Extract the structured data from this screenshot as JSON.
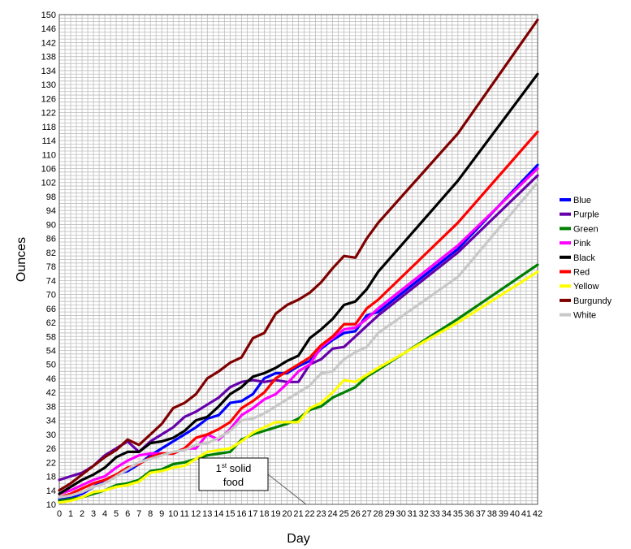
{
  "chart_data": {
    "type": "line",
    "xlabel": "Day",
    "ylabel": "Ounces",
    "xlim": [
      0,
      42
    ],
    "ylim": [
      10,
      150
    ],
    "x_ticks": [
      0,
      1,
      2,
      3,
      4,
      5,
      6,
      7,
      8,
      9,
      10,
      11,
      12,
      13,
      14,
      15,
      16,
      17,
      18,
      19,
      20,
      21,
      22,
      23,
      24,
      25,
      26,
      27,
      28,
      29,
      30,
      31,
      32,
      33,
      34,
      35,
      36,
      37,
      38,
      39,
      40,
      41,
      42
    ],
    "y_ticks": [
      10,
      14,
      18,
      22,
      26,
      30,
      34,
      38,
      42,
      46,
      50,
      54,
      58,
      62,
      66,
      70,
      74,
      78,
      82,
      86,
      90,
      94,
      98,
      102,
      106,
      110,
      114,
      118,
      122,
      126,
      130,
      134,
      138,
      142,
      146,
      150
    ],
    "grid": true,
    "legend_position": "right",
    "annotation": {
      "text_main": "1",
      "text_sup": "st",
      "text_rest": " solid",
      "text_line2": "food",
      "x": 22,
      "y": 11
    },
    "series": [
      {
        "name": "Blue",
        "color": "#0000ff",
        "x": [
          0,
          1,
          2,
          3,
          4,
          5,
          6,
          7,
          8,
          9,
          10,
          11,
          12,
          13,
          14,
          15,
          16,
          17,
          18,
          19,
          20,
          21,
          22,
          23,
          24,
          25,
          26,
          27,
          28,
          35,
          42
        ],
        "y": [
          11.5,
          12,
          13,
          15,
          17,
          18.5,
          19.5,
          21.5,
          24,
          26,
          28,
          30,
          32,
          34.5,
          35.5,
          39,
          39.5,
          41.5,
          46,
          47.5,
          47.5,
          49.5,
          51,
          54.5,
          57,
          59,
          59.5,
          64,
          65,
          83,
          107
        ]
      },
      {
        "name": "Purple",
        "color": "#6600aa",
        "x": [
          0,
          1,
          2,
          3,
          4,
          5,
          6,
          7,
          8,
          9,
          10,
          11,
          12,
          13,
          14,
          15,
          16,
          17,
          18,
          19,
          20,
          21,
          22,
          23,
          24,
          25,
          26,
          27,
          28,
          35,
          42
        ],
        "y": [
          17,
          18,
          19,
          21,
          24,
          26,
          28,
          25,
          28,
          30,
          32,
          35,
          36.5,
          38.5,
          40.5,
          43.5,
          45,
          45.5,
          45,
          45.5,
          45,
          45,
          50,
          51.5,
          54.5,
          55,
          58,
          61,
          64,
          82,
          104
        ]
      },
      {
        "name": "Green",
        "color": "#008000",
        "x": [
          0,
          1,
          2,
          3,
          4,
          5,
          6,
          7,
          8,
          9,
          10,
          11,
          12,
          13,
          14,
          15,
          16,
          17,
          18,
          19,
          20,
          21,
          22,
          23,
          24,
          25,
          26,
          27,
          28,
          35,
          42
        ],
        "y": [
          11,
          11.5,
          12,
          13,
          14,
          15.5,
          16,
          17,
          19.5,
          20,
          21.5,
          22,
          23,
          24,
          24.5,
          25,
          28.5,
          30,
          31,
          32,
          33,
          34.5,
          37,
          38,
          40.5,
          42,
          43.5,
          46.5,
          48.5,
          63,
          78.5
        ]
      },
      {
        "name": "Pink",
        "color": "#ff00ff",
        "x": [
          0,
          1,
          2,
          3,
          4,
          5,
          6,
          7,
          8,
          9,
          10,
          11,
          12,
          13,
          14,
          15,
          16,
          17,
          18,
          19,
          20,
          21,
          22,
          23,
          24,
          25,
          26,
          27,
          28,
          35,
          42
        ],
        "y": [
          13,
          14,
          15.5,
          17,
          18,
          20.5,
          22.5,
          24,
          24.5,
          24.5,
          24.5,
          26,
          26,
          30,
          28.5,
          31.5,
          35.5,
          37.5,
          40,
          41.5,
          44.5,
          48,
          50,
          55,
          57.5,
          60,
          60.5,
          63,
          66,
          84,
          106
        ]
      },
      {
        "name": "Black",
        "color": "#000000",
        "x": [
          0,
          1,
          2,
          3,
          4,
          5,
          6,
          7,
          8,
          9,
          10,
          11,
          12,
          13,
          14,
          15,
          16,
          17,
          18,
          19,
          20,
          21,
          22,
          23,
          24,
          25,
          26,
          27,
          28,
          35,
          42
        ],
        "y": [
          13,
          15,
          17,
          18.5,
          20.5,
          23.5,
          25,
          25,
          27.5,
          28,
          29,
          31,
          34,
          35,
          38,
          41.5,
          43.5,
          46.5,
          47.5,
          49,
          51,
          52.5,
          57.5,
          60,
          63,
          67,
          68,
          71.5,
          76.5,
          102.5,
          133
        ]
      },
      {
        "name": "Red",
        "color": "#ff0000",
        "x": [
          0,
          1,
          2,
          3,
          4,
          5,
          6,
          7,
          8,
          9,
          10,
          11,
          12,
          13,
          14,
          15,
          16,
          17,
          18,
          19,
          20,
          21,
          22,
          23,
          24,
          25,
          26,
          27,
          28,
          35,
          42
        ],
        "y": [
          12,
          13,
          14.5,
          16,
          17,
          18.5,
          20.5,
          21.5,
          23.5,
          24.5,
          24.5,
          26,
          29,
          30,
          31.5,
          33.5,
          37.5,
          39.5,
          42,
          46,
          48,
          50,
          52,
          55.5,
          58,
          61.5,
          61.5,
          66,
          68.5,
          90.5,
          116.5
        ]
      },
      {
        "name": "Yellow",
        "color": "#ffff00",
        "x": [
          0,
          1,
          2,
          3,
          4,
          5,
          6,
          7,
          8,
          9,
          10,
          11,
          12,
          13,
          14,
          15,
          16,
          17,
          18,
          19,
          20,
          21,
          22,
          23,
          24,
          25,
          26,
          27,
          28,
          35,
          42
        ],
        "y": [
          10.5,
          11,
          12,
          13.5,
          14,
          15,
          15.5,
          16.5,
          19,
          19.5,
          20.5,
          21,
          23,
          25,
          25.5,
          26,
          28,
          30.5,
          32,
          33.5,
          33.5,
          33.5,
          37.5,
          39,
          42,
          45.5,
          45,
          47,
          49,
          62,
          76.5
        ]
      },
      {
        "name": "Burgundy",
        "color": "#800000",
        "x": [
          0,
          1,
          2,
          3,
          4,
          5,
          6,
          7,
          8,
          9,
          10,
          11,
          12,
          13,
          14,
          15,
          16,
          17,
          18,
          19,
          20,
          21,
          22,
          23,
          24,
          25,
          26,
          27,
          28,
          35,
          42
        ],
        "y": [
          14,
          16,
          18.5,
          21,
          23.5,
          25.5,
          28.5,
          27,
          30,
          33,
          37.5,
          39,
          41.5,
          46,
          48,
          50.5,
          52,
          57.5,
          59,
          64.5,
          67,
          68.5,
          70.5,
          73.5,
          77.5,
          81,
          80.5,
          86,
          90.5,
          116,
          148.5
        ]
      },
      {
        "name": "White",
        "color": "#c8c8c8",
        "x": [
          0,
          1,
          2,
          3,
          4,
          5,
          6,
          7,
          8,
          9,
          10,
          11,
          12,
          13,
          14,
          15,
          16,
          17,
          18,
          19,
          20,
          21,
          22,
          23,
          24,
          25,
          26,
          27,
          28,
          35,
          42
        ],
        "y": [
          12,
          12.5,
          13.5,
          15,
          16,
          18,
          20,
          22,
          23,
          24,
          25,
          25.5,
          27,
          27.5,
          29,
          31,
          34,
          34.5,
          36,
          38,
          40,
          42,
          44,
          47.5,
          48,
          51.5,
          53.5,
          55,
          59,
          75,
          102
        ]
      }
    ]
  }
}
